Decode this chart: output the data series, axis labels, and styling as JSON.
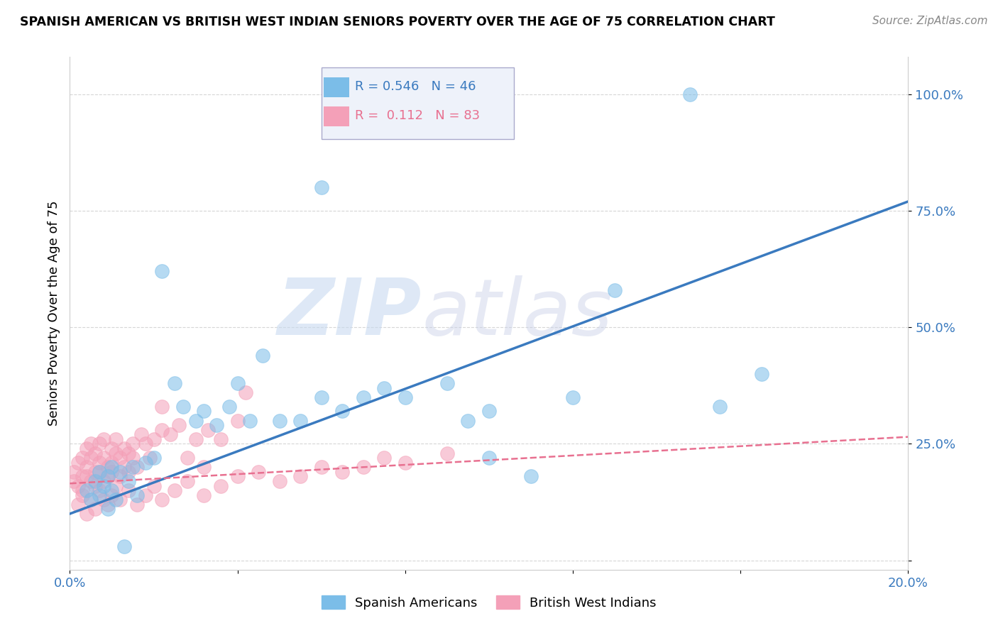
{
  "title": "SPANISH AMERICAN VS BRITISH WEST INDIAN SENIORS POVERTY OVER THE AGE OF 75 CORRELATION CHART",
  "source": "Source: ZipAtlas.com",
  "ylabel": "Seniors Poverty Over the Age of 75",
  "xlim": [
    0.0,
    0.2
  ],
  "ylim": [
    -0.02,
    1.08
  ],
  "r_blue": 0.546,
  "n_blue": 46,
  "r_pink": 0.112,
  "n_pink": 83,
  "blue_color": "#7bbde8",
  "pink_color": "#f4a0b8",
  "blue_line_color": "#3a7abf",
  "pink_line_color": "#e87090",
  "blue_scatter_x": [
    0.004,
    0.005,
    0.006,
    0.007,
    0.007,
    0.008,
    0.009,
    0.009,
    0.01,
    0.01,
    0.011,
    0.012,
    0.013,
    0.014,
    0.015,
    0.016,
    0.018,
    0.02,
    0.022,
    0.025,
    0.027,
    0.03,
    0.032,
    0.035,
    0.038,
    0.04,
    0.043,
    0.046,
    0.05,
    0.055,
    0.06,
    0.065,
    0.07,
    0.075,
    0.08,
    0.09,
    0.095,
    0.1,
    0.11,
    0.12,
    0.13,
    0.148,
    0.155,
    0.165,
    0.06,
    0.1
  ],
  "blue_scatter_y": [
    0.15,
    0.13,
    0.17,
    0.19,
    0.14,
    0.16,
    0.11,
    0.18,
    0.2,
    0.15,
    0.13,
    0.19,
    0.03,
    0.17,
    0.2,
    0.14,
    0.21,
    0.22,
    0.62,
    0.38,
    0.33,
    0.3,
    0.32,
    0.29,
    0.33,
    0.38,
    0.3,
    0.44,
    0.3,
    0.3,
    0.35,
    0.32,
    0.35,
    0.37,
    0.35,
    0.38,
    0.3,
    0.22,
    0.18,
    0.35,
    0.58,
    1.0,
    0.33,
    0.4,
    0.8,
    0.32
  ],
  "pink_scatter_x": [
    0.001,
    0.001,
    0.002,
    0.002,
    0.003,
    0.003,
    0.003,
    0.004,
    0.004,
    0.004,
    0.005,
    0.005,
    0.005,
    0.006,
    0.006,
    0.006,
    0.007,
    0.007,
    0.007,
    0.008,
    0.008,
    0.008,
    0.009,
    0.009,
    0.01,
    0.01,
    0.01,
    0.011,
    0.011,
    0.012,
    0.012,
    0.013,
    0.013,
    0.014,
    0.014,
    0.015,
    0.015,
    0.016,
    0.017,
    0.018,
    0.019,
    0.02,
    0.022,
    0.024,
    0.026,
    0.028,
    0.03,
    0.033,
    0.036,
    0.04,
    0.002,
    0.003,
    0.004,
    0.005,
    0.006,
    0.007,
    0.008,
    0.009,
    0.01,
    0.011,
    0.012,
    0.014,
    0.016,
    0.018,
    0.02,
    0.022,
    0.025,
    0.028,
    0.032,
    0.036,
    0.04,
    0.045,
    0.05,
    0.055,
    0.06,
    0.065,
    0.07,
    0.075,
    0.08,
    0.09,
    0.022,
    0.032,
    0.042
  ],
  "pink_scatter_y": [
    0.17,
    0.19,
    0.16,
    0.21,
    0.18,
    0.22,
    0.15,
    0.2,
    0.24,
    0.18,
    0.22,
    0.17,
    0.25,
    0.19,
    0.23,
    0.16,
    0.21,
    0.25,
    0.19,
    0.22,
    0.17,
    0.26,
    0.2,
    0.18,
    0.24,
    0.21,
    0.19,
    0.23,
    0.26,
    0.22,
    0.18,
    0.24,
    0.2,
    0.23,
    0.19,
    0.25,
    0.22,
    0.2,
    0.27,
    0.25,
    0.22,
    0.26,
    0.28,
    0.27,
    0.29,
    0.22,
    0.26,
    0.28,
    0.26,
    0.3,
    0.12,
    0.14,
    0.1,
    0.13,
    0.11,
    0.15,
    0.13,
    0.12,
    0.14,
    0.16,
    0.13,
    0.15,
    0.12,
    0.14,
    0.16,
    0.13,
    0.15,
    0.17,
    0.14,
    0.16,
    0.18,
    0.19,
    0.17,
    0.18,
    0.2,
    0.19,
    0.2,
    0.22,
    0.21,
    0.23,
    0.33,
    0.2,
    0.36
  ],
  "blue_trend_x0": 0.0,
  "blue_trend_y0": 0.1,
  "blue_trend_x1": 0.2,
  "blue_trend_y1": 0.77,
  "pink_trend_x0": 0.0,
  "pink_trend_y0": 0.165,
  "pink_trend_x1": 0.2,
  "pink_trend_y1": 0.265
}
